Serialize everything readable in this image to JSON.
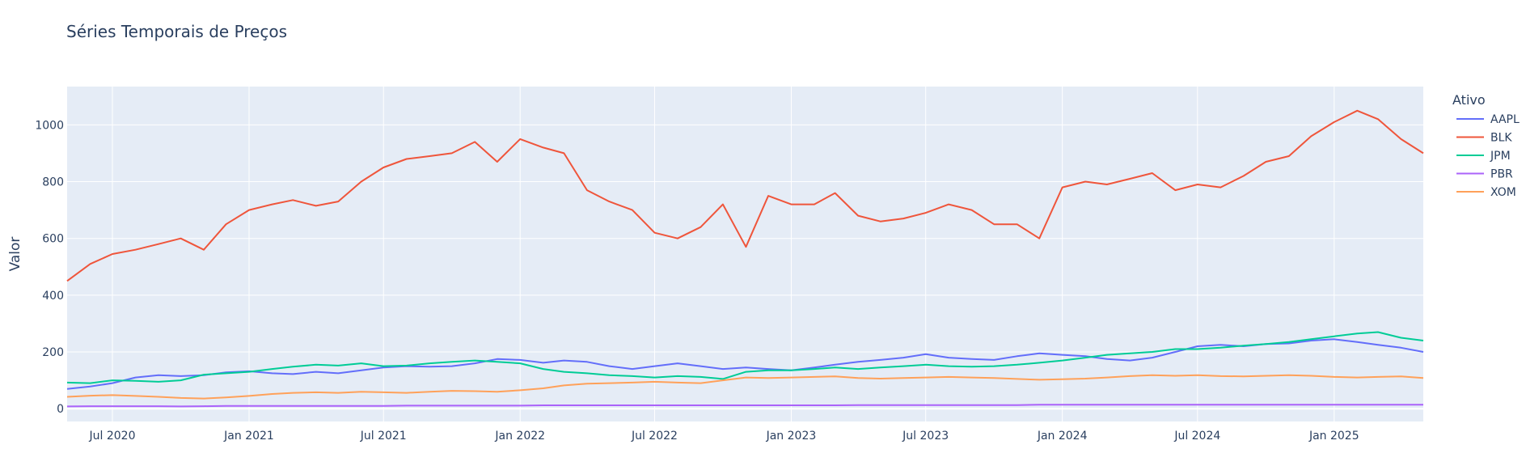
{
  "chart_data": {
    "type": "line",
    "title": "Séries Temporais de Preços",
    "xlabel": "",
    "ylabel": "Valor",
    "legend_title": "Ativo",
    "legend_position": "right",
    "grid": true,
    "x_range": [
      "2020-05-01",
      "2025-05-01"
    ],
    "ylim": [
      -45,
      1135
    ],
    "y_ticks": [
      0,
      200,
      400,
      600,
      800,
      1000
    ],
    "x_ticks": [
      {
        "date": "2020-07-01",
        "label": "Jul 2020"
      },
      {
        "date": "2021-01-01",
        "label": "Jan 2021"
      },
      {
        "date": "2021-07-01",
        "label": "Jul 2021"
      },
      {
        "date": "2022-01-01",
        "label": "Jan 2022"
      },
      {
        "date": "2022-07-01",
        "label": "Jul 2022"
      },
      {
        "date": "2023-01-01",
        "label": "Jan 2023"
      },
      {
        "date": "2023-07-01",
        "label": "Jul 2023"
      },
      {
        "date": "2024-01-01",
        "label": "Jan 2024"
      },
      {
        "date": "2024-07-01",
        "label": "Jul 2024"
      },
      {
        "date": "2025-01-01",
        "label": "Jan 2025"
      }
    ],
    "x": [
      "2020-05-01",
      "2020-06-01",
      "2020-07-01",
      "2020-08-01",
      "2020-09-01",
      "2020-10-01",
      "2020-11-01",
      "2020-12-01",
      "2021-01-01",
      "2021-02-01",
      "2021-03-01",
      "2021-04-01",
      "2021-05-01",
      "2021-06-01",
      "2021-07-01",
      "2021-08-01",
      "2021-09-01",
      "2021-10-01",
      "2021-11-01",
      "2021-12-01",
      "2022-01-01",
      "2022-02-01",
      "2022-03-01",
      "2022-04-01",
      "2022-05-01",
      "2022-06-01",
      "2022-07-01",
      "2022-08-01",
      "2022-09-01",
      "2022-10-01",
      "2022-11-01",
      "2022-12-01",
      "2023-01-01",
      "2023-02-01",
      "2023-03-01",
      "2023-04-01",
      "2023-05-01",
      "2023-06-01",
      "2023-07-01",
      "2023-08-01",
      "2023-09-01",
      "2023-10-01",
      "2023-11-01",
      "2023-12-01",
      "2024-01-01",
      "2024-02-01",
      "2024-03-01",
      "2024-04-01",
      "2024-05-01",
      "2024-06-01",
      "2024-07-01",
      "2024-08-01",
      "2024-09-01",
      "2024-10-01",
      "2024-11-01",
      "2024-12-01",
      "2025-01-01",
      "2025-02-01",
      "2025-03-01",
      "2025-04-01",
      "2025-05-01"
    ],
    "series": [
      {
        "name": "AAPL",
        "color": "#636efa",
        "values": [
          70,
          78,
          90,
          110,
          118,
          115,
          118,
          128,
          132,
          125,
          122,
          130,
          125,
          135,
          145,
          150,
          148,
          150,
          160,
          175,
          172,
          162,
          170,
          165,
          150,
          140,
          150,
          160,
          150,
          140,
          145,
          140,
          135,
          145,
          155,
          165,
          172,
          180,
          192,
          180,
          175,
          172,
          185,
          195,
          190,
          185,
          175,
          170,
          180,
          200,
          220,
          225,
          220,
          228,
          230,
          240,
          245,
          235,
          225,
          215,
          200
        ]
      },
      {
        "name": "BLK",
        "color": "#ef553b",
        "values": [
          450,
          510,
          545,
          560,
          580,
          600,
          560,
          650,
          700,
          720,
          735,
          715,
          730,
          800,
          850,
          880,
          890,
          900,
          940,
          870,
          950,
          920,
          900,
          770,
          730,
          700,
          620,
          600,
          640,
          720,
          570,
          750,
          720,
          720,
          760,
          680,
          660,
          670,
          690,
          720,
          700,
          650,
          650,
          600,
          780,
          800,
          790,
          810,
          830,
          770,
          790,
          780,
          820,
          870,
          890,
          960,
          1010,
          1050,
          1020,
          950,
          900
        ]
      },
      {
        "name": "JPM",
        "color": "#00cc96",
        "values": [
          92,
          90,
          100,
          98,
          95,
          100,
          120,
          125,
          130,
          140,
          148,
          155,
          152,
          160,
          150,
          152,
          160,
          165,
          170,
          165,
          160,
          140,
          130,
          125,
          118,
          115,
          110,
          115,
          112,
          105,
          130,
          135,
          135,
          140,
          145,
          140,
          145,
          150,
          155,
          150,
          148,
          150,
          155,
          162,
          170,
          180,
          190,
          195,
          200,
          210,
          210,
          215,
          222,
          228,
          235,
          245,
          255,
          265,
          270,
          250,
          240
        ]
      },
      {
        "name": "PBR",
        "color": "#ab63fa",
        "values": [
          8,
          9,
          9,
          9,
          9,
          8,
          9,
          10,
          10,
          10,
          10,
          10,
          10,
          10,
          10,
          11,
          11,
          11,
          11,
          11,
          11,
          12,
          12,
          12,
          12,
          12,
          12,
          12,
          12,
          12,
          12,
          12,
          12,
          12,
          12,
          13,
          13,
          13,
          13,
          13,
          13,
          13,
          13,
          14,
          14,
          14,
          14,
          14,
          14,
          14,
          14,
          14,
          14,
          14,
          14,
          14,
          14,
          14,
          14,
          14,
          14
        ]
      },
      {
        "name": "XOM",
        "color": "#ffa15a",
        "values": [
          42,
          46,
          48,
          45,
          42,
          38,
          36,
          40,
          45,
          52,
          56,
          58,
          56,
          60,
          58,
          56,
          60,
          63,
          62,
          60,
          65,
          72,
          82,
          88,
          90,
          92,
          95,
          92,
          90,
          100,
          110,
          108,
          110,
          112,
          114,
          108,
          106,
          108,
          110,
          112,
          110,
          108,
          105,
          102,
          104,
          106,
          110,
          115,
          118,
          116,
          118,
          115,
          114,
          116,
          118,
          116,
          112,
          110,
          112,
          114,
          108
        ]
      }
    ]
  }
}
